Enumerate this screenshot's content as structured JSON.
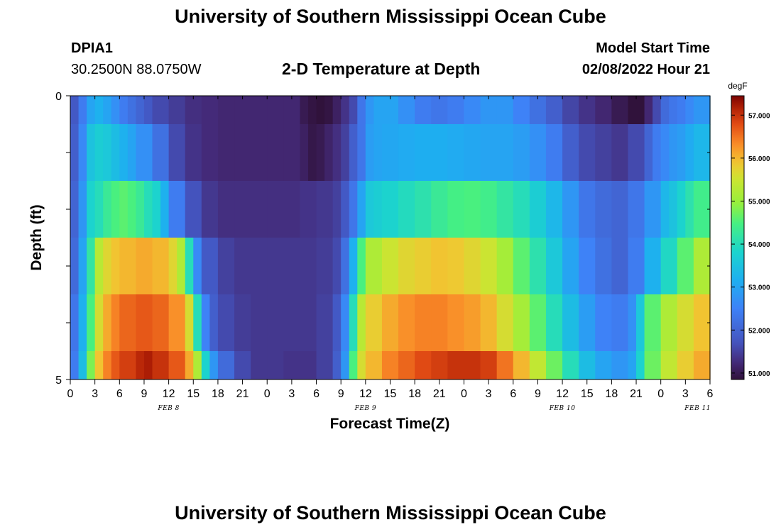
{
  "header": {
    "title": "University of Southern Mississippi Ocean Cube",
    "station": "DPIA1",
    "coords": "30.2500N  88.0750W",
    "chart_title": "2-D Temperature at Depth",
    "model_label": "Model Start Time",
    "model_time": "02/08/2022 Hour 21"
  },
  "footer": {
    "title": "University of Southern Mississippi Ocean Cube"
  },
  "chart_data": {
    "type": "heatmap",
    "title": "2-D Temperature at Depth",
    "xlabel": "Forecast Time(Z)",
    "ylabel": "Depth (ft)",
    "x_ticks": [
      "0",
      "3",
      "6",
      "9",
      "12",
      "15",
      "18",
      "21",
      "0",
      "3",
      "6",
      "9",
      "12",
      "15",
      "18",
      "21",
      "0",
      "3",
      "6",
      "9",
      "12",
      "15",
      "18",
      "21",
      "0",
      "3",
      "6"
    ],
    "date_labels": [
      "FEB 8",
      "FEB 9",
      "FEB 10",
      "FEB 11"
    ],
    "y_ticks": [
      "0",
      "5"
    ],
    "ylim": [
      0,
      5
    ],
    "colorbar": {
      "unit": "degF",
      "ticks": [
        "51.000",
        "52.000",
        "53.000",
        "54.000",
        "55.000",
        "56.000",
        "57.000"
      ],
      "range": [
        50.85,
        57.45
      ]
    },
    "rows": [
      {
        "depth_range": [
          0,
          0.5
        ],
        "x_hours": [
          0,
          1,
          2,
          3,
          4,
          5,
          6,
          7,
          8,
          9,
          10,
          12,
          14,
          16,
          18,
          20,
          22,
          24,
          26,
          28,
          29,
          30,
          31,
          32,
          33,
          34,
          35,
          36,
          37,
          38,
          40,
          42,
          44,
          46,
          48,
          50,
          52,
          54,
          56,
          58,
          60,
          62,
          64,
          66,
          68,
          70,
          71,
          72,
          73,
          74,
          75,
          76,
          78
        ],
        "values": [
          51.8,
          52.4,
          53.0,
          53.2,
          53.0,
          52.7,
          52.4,
          52.2,
          52.0,
          51.8,
          51.6,
          51.45,
          51.3,
          51.25,
          51.2,
          51.2,
          51.2,
          51.2,
          51.2,
          51.0,
          50.9,
          50.85,
          50.9,
          51.1,
          51.35,
          51.6,
          52.3,
          52.8,
          53.0,
          53.0,
          52.7,
          52.4,
          52.3,
          52.4,
          52.6,
          52.8,
          52.8,
          52.5,
          52.2,
          51.9,
          51.55,
          51.35,
          51.2,
          51.0,
          50.85,
          51.2,
          51.6,
          52.1,
          52.3,
          52.4,
          52.6,
          52.8,
          53.0
        ]
      },
      {
        "depth_range": [
          0.5,
          1.5
        ],
        "x_hours": [
          0,
          1,
          2,
          3,
          4,
          5,
          6,
          7,
          8,
          10,
          12,
          14,
          16,
          18,
          20,
          22,
          24,
          26,
          28,
          29,
          30,
          31,
          32,
          33,
          34,
          35,
          36,
          37,
          38,
          40,
          42,
          44,
          46,
          48,
          50,
          52,
          54,
          56,
          58,
          60,
          62,
          64,
          66,
          68,
          70,
          71,
          72,
          73,
          74,
          75,
          76,
          78
        ],
        "values": [
          51.9,
          52.6,
          53.5,
          53.7,
          53.6,
          53.4,
          53.2,
          53.0,
          52.7,
          52.2,
          51.6,
          51.35,
          51.25,
          51.2,
          51.2,
          51.2,
          51.2,
          51.2,
          51.1,
          50.95,
          51.0,
          51.15,
          51.3,
          51.5,
          51.9,
          52.3,
          52.9,
          53.0,
          53.05,
          53.1,
          53.15,
          53.15,
          53.1,
          53.05,
          53.0,
          53.0,
          52.9,
          52.7,
          52.4,
          51.9,
          51.6,
          51.5,
          51.4,
          51.6,
          52.0,
          52.4,
          52.6,
          52.8,
          52.9,
          53.1,
          53.3,
          53.5
        ]
      },
      {
        "depth_range": [
          1.5,
          2.5
        ],
        "x_hours": [
          0,
          1,
          2,
          3,
          4,
          5,
          6,
          7,
          8,
          9,
          10,
          11,
          12,
          14,
          16,
          18,
          20,
          22,
          24,
          26,
          28,
          30,
          32,
          33,
          34,
          35,
          36,
          37,
          38,
          40,
          42,
          44,
          46,
          48,
          50,
          52,
          54,
          56,
          58,
          60,
          62,
          64,
          66,
          68,
          70,
          72,
          73,
          74,
          75,
          76,
          78
        ],
        "values": [
          52.0,
          52.8,
          53.8,
          54.0,
          54.3,
          54.5,
          54.6,
          54.5,
          54.3,
          54.0,
          53.8,
          53.2,
          52.4,
          51.7,
          51.4,
          51.3,
          51.3,
          51.3,
          51.3,
          51.3,
          51.35,
          51.4,
          51.5,
          51.8,
          52.3,
          53.0,
          53.6,
          53.7,
          53.8,
          53.95,
          54.1,
          54.3,
          54.45,
          54.5,
          54.4,
          54.2,
          54.0,
          53.7,
          53.3,
          52.8,
          52.3,
          52.1,
          52.0,
          52.3,
          52.8,
          53.3,
          53.5,
          53.8,
          54.1,
          54.4,
          54.6
        ]
      },
      {
        "depth_range": [
          2.5,
          3.5
        ],
        "x_hours": [
          0,
          1,
          2,
          3,
          4,
          5,
          6,
          8,
          10,
          12,
          13,
          14,
          15,
          16,
          18,
          20,
          22,
          24,
          26,
          28,
          30,
          32,
          33,
          34,
          35,
          36,
          38,
          40,
          42,
          44,
          46,
          48,
          50,
          52,
          54,
          56,
          58,
          60,
          62,
          64,
          66,
          68,
          70,
          72,
          74,
          76,
          78
        ],
        "values": [
          52.1,
          53.0,
          54.2,
          55.3,
          55.7,
          55.9,
          56.0,
          56.1,
          56.0,
          55.7,
          55.2,
          54.0,
          52.6,
          51.8,
          51.5,
          51.4,
          51.4,
          51.4,
          51.4,
          51.4,
          51.45,
          51.6,
          52.2,
          53.2,
          54.5,
          55.2,
          55.5,
          55.7,
          55.8,
          55.9,
          55.85,
          55.7,
          55.5,
          55.1,
          54.6,
          54.1,
          53.6,
          53.0,
          52.5,
          52.2,
          52.0,
          52.4,
          53.2,
          53.9,
          54.6,
          55.2,
          55.6
        ]
      },
      {
        "depth_range": [
          3.5,
          4.5
        ],
        "x_hours": [
          0,
          1,
          2,
          3,
          4,
          5,
          6,
          8,
          10,
          12,
          14,
          15,
          16,
          17,
          18,
          20,
          22,
          24,
          26,
          28,
          30,
          32,
          33,
          34,
          35,
          36,
          38,
          40,
          42,
          44,
          46,
          48,
          50,
          52,
          54,
          56,
          58,
          60,
          62,
          64,
          66,
          68,
          69,
          70,
          72,
          74,
          76,
          78
        ],
        "values": [
          52.3,
          53.2,
          54.5,
          55.6,
          56.1,
          56.4,
          56.6,
          56.7,
          56.6,
          56.3,
          55.6,
          54.0,
          52.5,
          51.9,
          51.6,
          51.45,
          51.4,
          51.4,
          51.4,
          51.4,
          51.5,
          51.8,
          52.6,
          54.0,
          55.3,
          55.8,
          56.1,
          56.3,
          56.4,
          56.4,
          56.3,
          56.2,
          56.0,
          55.6,
          55.1,
          54.6,
          54.0,
          53.4,
          52.9,
          52.5,
          52.4,
          52.7,
          53.6,
          54.6,
          55.2,
          55.6,
          55.9,
          56.1
        ]
      },
      {
        "depth_range": [
          4.5,
          5.0
        ],
        "x_hours": [
          0,
          1,
          2,
          3,
          4,
          5,
          6,
          8,
          9,
          10,
          12,
          14,
          15,
          16,
          17,
          18,
          20,
          22,
          24,
          26,
          28,
          30,
          32,
          33,
          34,
          35,
          36,
          38,
          40,
          42,
          44,
          46,
          48,
          50,
          52,
          54,
          56,
          58,
          60,
          62,
          64,
          66,
          68,
          69,
          70,
          72,
          74,
          76,
          78
        ],
        "values": [
          52.4,
          53.4,
          54.8,
          55.9,
          56.4,
          56.7,
          56.9,
          57.1,
          57.2,
          57.0,
          56.7,
          56.1,
          55.2,
          53.8,
          52.8,
          52.1,
          51.6,
          51.4,
          51.4,
          51.35,
          51.35,
          51.5,
          51.9,
          52.8,
          54.5,
          55.6,
          56.0,
          56.4,
          56.6,
          56.8,
          56.9,
          57.0,
          57.0,
          56.9,
          56.5,
          56.0,
          55.4,
          54.7,
          54.0,
          53.4,
          53.0,
          52.8,
          53.0,
          53.8,
          54.7,
          55.4,
          55.8,
          56.1,
          56.3
        ]
      }
    ]
  }
}
